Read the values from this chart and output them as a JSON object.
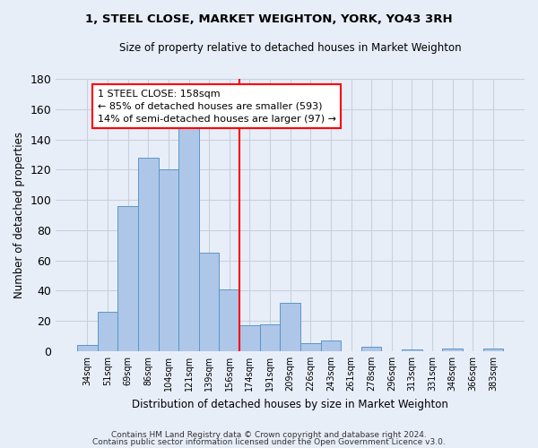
{
  "title": "1, STEEL CLOSE, MARKET WEIGHTON, YORK, YO43 3RH",
  "subtitle": "Size of property relative to detached houses in Market Weighton",
  "xlabel": "Distribution of detached houses by size in Market Weighton",
  "ylabel": "Number of detached properties",
  "bar_labels": [
    "34sqm",
    "51sqm",
    "69sqm",
    "86sqm",
    "104sqm",
    "121sqm",
    "139sqm",
    "156sqm",
    "174sqm",
    "191sqm",
    "209sqm",
    "226sqm",
    "243sqm",
    "261sqm",
    "278sqm",
    "296sqm",
    "313sqm",
    "331sqm",
    "348sqm",
    "366sqm",
    "383sqm"
  ],
  "bar_values": [
    4,
    26,
    96,
    128,
    120,
    151,
    65,
    41,
    17,
    18,
    32,
    5,
    7,
    0,
    3,
    0,
    1,
    0,
    2,
    0,
    2
  ],
  "bar_color": "#aec6e8",
  "bar_edge_color": "#5a96c8",
  "ylim": [
    0,
    180
  ],
  "yticks": [
    0,
    20,
    40,
    60,
    80,
    100,
    120,
    140,
    160,
    180
  ],
  "vline_index": 7,
  "annotation_title": "1 STEEL CLOSE: 158sqm",
  "annotation_line1": "← 85% of detached houses are smaller (593)",
  "annotation_line2": "14% of semi-detached houses are larger (97) →",
  "footer1": "Contains HM Land Registry data © Crown copyright and database right 2024.",
  "footer2": "Contains public sector information licensed under the Open Government Licence v3.0.",
  "background_color": "#e8eef8",
  "plot_bg_color": "#e8eef8",
  "grid_color": "#c8d0e0"
}
